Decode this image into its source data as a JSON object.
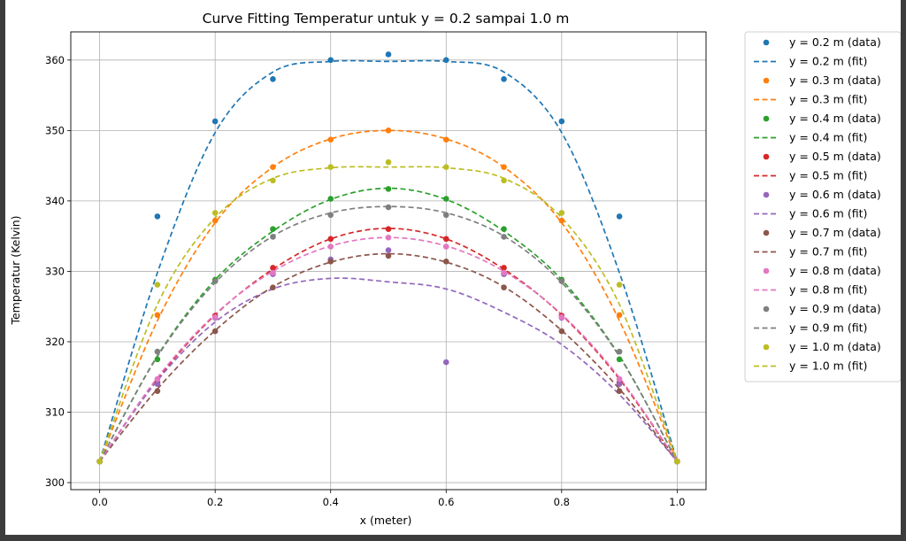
{
  "chart_data": {
    "type": "scatter",
    "title": "Curve Fitting Temperatur untuk y = 0.2 sampai 1.0 m",
    "xlabel": "x (meter)",
    "ylabel": "Temperatur (Kelvin)",
    "xlim": [
      -0.05,
      1.05
    ],
    "ylim": [
      299,
      364
    ],
    "grid": true,
    "legend_position": "outside-right",
    "x_ticks": [
      "0.0",
      "0.2",
      "0.4",
      "0.6",
      "0.8",
      "1.0"
    ],
    "y_ticks": [
      "300",
      "310",
      "320",
      "330",
      "340",
      "350",
      "360"
    ],
    "x": [
      0.0,
      0.1,
      0.2,
      0.3,
      0.4,
      0.5,
      0.6,
      0.7,
      0.8,
      0.9,
      1.0
    ],
    "series": [
      {
        "name": "y = 0.2 m",
        "data_label": "y = 0.2 m (data)",
        "fit_label": "y = 0.2 m (fit)",
        "color": "#1f77b4",
        "values": [
          303.0,
          337.8,
          351.3,
          357.3,
          360.0,
          360.8,
          360.0,
          357.3,
          351.3,
          337.8,
          303.0
        ],
        "fit": [
          303.0,
          329.8,
          349.7,
          358.3,
          359.8,
          359.8,
          359.8,
          358.3,
          349.7,
          329.8,
          303.0
        ]
      },
      {
        "name": "y = 0.3 m",
        "data_label": "y = 0.3 m (data)",
        "fit_label": "y = 0.3 m (fit)",
        "color": "#ff7f0e",
        "values": [
          303.0,
          323.8,
          337.2,
          344.8,
          348.7,
          350.0,
          348.7,
          344.8,
          337.2,
          323.8,
          303.0
        ],
        "fit": [
          303.0,
          323.0,
          336.9,
          344.8,
          348.8,
          350.0,
          348.8,
          344.8,
          336.9,
          323.0,
          303.0
        ]
      },
      {
        "name": "y = 0.4 m",
        "data_label": "y = 0.4 m (data)",
        "fit_label": "y = 0.4 m (fit)",
        "color": "#2ca02c",
        "values": [
          303.0,
          317.5,
          328.8,
          336.0,
          340.3,
          341.7,
          340.3,
          336.0,
          328.8,
          317.5,
          303.0
        ],
        "fit": [
          303.0,
          318.0,
          328.8,
          335.7,
          340.2,
          341.8,
          340.2,
          335.7,
          328.8,
          318.0,
          303.0
        ]
      },
      {
        "name": "y = 0.5 m",
        "data_label": "y = 0.5 m (data)",
        "fit_label": "y = 0.5 m (fit)",
        "color": "#d62728",
        "values": [
          303.0,
          314.2,
          323.7,
          330.5,
          334.6,
          336.0,
          334.6,
          330.5,
          323.7,
          314.2,
          303.0
        ],
        "fit": [
          303.0,
          314.7,
          323.8,
          330.3,
          334.6,
          336.1,
          334.6,
          330.3,
          323.8,
          314.7,
          303.0
        ]
      },
      {
        "name": "y = 0.6 m",
        "data_label": "y = 0.6 m (data)",
        "fit_label": "y = 0.6 m (fit)",
        "color": "#9467bd",
        "values": [
          303.0,
          314.0,
          323.4,
          329.6,
          331.7,
          333.0,
          317.1,
          329.6,
          323.4,
          314.0,
          303.0
        ],
        "fit": [
          303.0,
          314.5,
          322.8,
          327.5,
          329.0,
          328.5,
          327.5,
          324.2,
          319.6,
          312.5,
          303.0
        ]
      },
      {
        "name": "y = 0.7 m",
        "data_label": "y = 0.7 m (data)",
        "fit_label": "y = 0.7 m (fit)",
        "color": "#8c564b",
        "values": [
          303.0,
          313.0,
          321.5,
          327.7,
          331.4,
          332.2,
          331.4,
          327.7,
          321.5,
          313.0,
          303.0
        ],
        "fit": [
          303.0,
          313.3,
          321.6,
          327.8,
          331.3,
          332.5,
          331.3,
          327.8,
          321.6,
          313.3,
          303.0
        ]
      },
      {
        "name": "y = 0.8 m",
        "data_label": "y = 0.8 m (data)",
        "fit_label": "y = 0.8 m (fit)",
        "color": "#e377c2",
        "values": [
          303.0,
          314.7,
          323.5,
          329.8,
          333.5,
          334.8,
          333.5,
          329.8,
          323.5,
          314.7,
          303.0
        ],
        "fit": [
          303.0,
          314.9,
          323.9,
          330.0,
          333.6,
          334.8,
          333.6,
          330.0,
          323.9,
          314.9,
          303.0
        ]
      },
      {
        "name": "y = 0.9 m",
        "data_label": "y = 0.9 m (data)",
        "fit_label": "y = 0.9 m (fit)",
        "color": "#7f7f7f",
        "values": [
          303.0,
          318.6,
          328.6,
          334.9,
          338.0,
          339.1,
          338.0,
          334.9,
          328.6,
          318.6,
          303.0
        ],
        "fit": [
          303.0,
          317.9,
          328.4,
          335.0,
          338.3,
          339.2,
          338.3,
          335.0,
          328.4,
          317.9,
          303.0
        ]
      },
      {
        "name": "y = 1.0 m",
        "data_label": "y = 1.0 m (data)",
        "fit_label": "y = 1.0 m (fit)",
        "color": "#bcbd22",
        "values": [
          303.0,
          328.1,
          338.3,
          342.9,
          344.8,
          345.5,
          344.8,
          342.9,
          338.3,
          328.1,
          303.0
        ],
        "fit": [
          303.0,
          325.3,
          337.6,
          343.2,
          344.7,
          344.8,
          344.7,
          343.2,
          337.6,
          325.3,
          303.0
        ]
      }
    ]
  }
}
